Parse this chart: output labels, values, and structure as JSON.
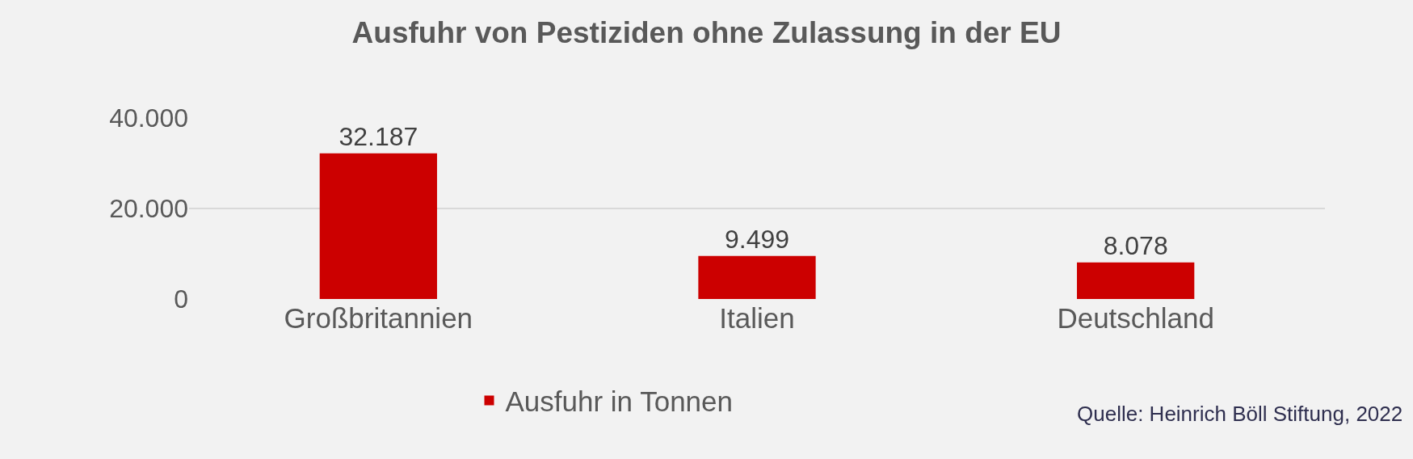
{
  "chart_data": {
    "type": "bar",
    "title": "Ausfuhr von Pestiziden ohne Zulassung in der EU",
    "categories": [
      "Großbritannien",
      "Italien",
      "Deutschland"
    ],
    "series": [
      {
        "name": "Ausfuhr in Tonnen",
        "color": "#cc0000",
        "values": [
          32187,
          9499,
          8078
        ],
        "value_labels": [
          "32.187",
          "9.499",
          "8.078"
        ]
      }
    ],
    "ylim": [
      0,
      40000
    ],
    "yticks": [
      {
        "value": 0,
        "label": "0"
      },
      {
        "value": 20000,
        "label": "20.000"
      },
      {
        "value": 40000,
        "label": "40.000"
      }
    ],
    "grid": "y",
    "legend": "bottom",
    "annotations": [
      "Quelle: Heinrich Böll Stiftung, 2022"
    ]
  }
}
